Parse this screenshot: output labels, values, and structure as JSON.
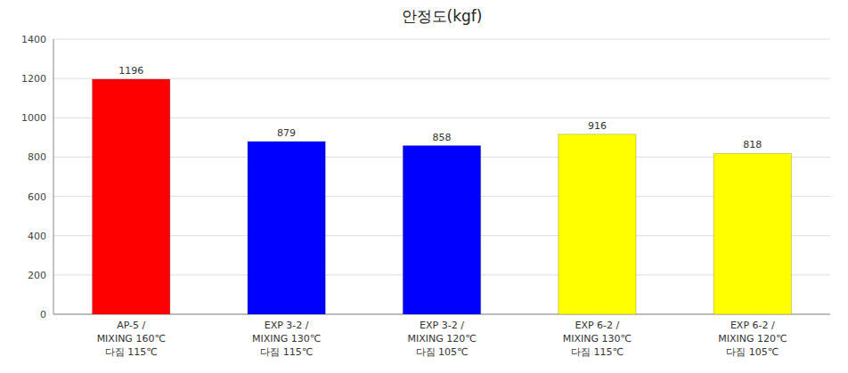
{
  "chart_data": {
    "type": "bar",
    "title": "안정도(kgf)",
    "categories": [
      "AP-5 /\nMIXING  160℃\n다짐 115℃",
      "EXP 3-2 /\nMIXING  130℃\n다짐 115℃",
      "EXP 3-2 /\nMIXING  120℃\n다짐 105℃",
      "EXP 6-2 /\nMIXING  130℃\n다짐 115℃",
      "EXP 6-2 /\nMIXING  120℃\n다짐 105℃"
    ],
    "values": [
      1196,
      879,
      858,
      916,
      818
    ],
    "colors": [
      "#ff0000",
      "#0000ff",
      "#0000ff",
      "#ffff00",
      "#ffff00"
    ],
    "ylim": [
      0,
      1400
    ],
    "yticks": [
      0,
      200,
      400,
      600,
      800,
      1000,
      1200,
      1400
    ],
    "grid": true,
    "data_labels": true
  }
}
